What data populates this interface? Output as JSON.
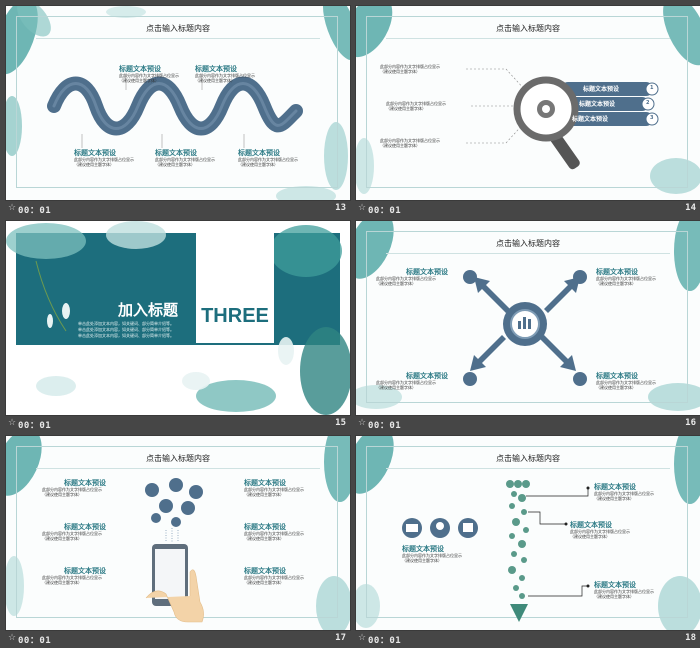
{
  "colors": {
    "teal": "#2f7c87",
    "dark_teal": "#1d6e7d",
    "steel": "#4f6f8c",
    "leaf": "#3f9e9b",
    "light_leaf": "#9fd1cf",
    "bg": "#464646"
  },
  "slides": [
    {
      "number": "13",
      "time": "00：01",
      "title": "点击输入标题内容",
      "items": [
        {
          "label": "标题文本预设",
          "body1": "此部分内容作为文字排版占位显示",
          "body2": "（建议使用主题字体）"
        },
        {
          "label": "标题文本预设",
          "body1": "此部分内容作为文字排版占位显示",
          "body2": "（建议使用主题字体）"
        },
        {
          "label": "标题文本预设",
          "body1": "此部分内容作为文字排版占位显示",
          "body2": "（建议使用主题字体）"
        },
        {
          "label": "标题文本预设",
          "body1": "此部分内容作为文字排版占位显示",
          "body2": "（建议使用主题字体）"
        },
        {
          "label": "标题文本预设",
          "body1": "此部分内容作为文字排版占位显示",
          "body2": "（建议使用主题字体）"
        }
      ]
    },
    {
      "number": "14",
      "time": "00：01",
      "title": "点击输入标题内容",
      "left_items": [
        {
          "body1": "此部分内容作为文字排版占位显示",
          "body2": "（建议使用主题字体）"
        },
        {
          "body1": "此部分内容作为文字排版占位显示",
          "body2": "（建议使用主题字体）"
        },
        {
          "body1": "此部分内容作为文字排版占位显示",
          "body2": "（建议使用主题字体）"
        }
      ],
      "tabs": [
        {
          "label": "标题文本预设",
          "num": "1"
        },
        {
          "label": "标题文本预设",
          "num": "2"
        },
        {
          "label": "标题文本预设",
          "num": "3"
        }
      ]
    },
    {
      "number": "15",
      "time": "00：01",
      "heading": "加入标题",
      "section": "THREE",
      "lines": [
        "单击此处添加文本内容，如关键词、部分简单介绍等。",
        "单击此处添加文本内容，如关键词、部分简单介绍等。",
        "单击此处添加文本内容，如关键词、部分简单介绍等。"
      ]
    },
    {
      "number": "16",
      "time": "00：01",
      "title": "点击输入标题内容",
      "items": [
        {
          "label": "标题文本预设",
          "body1": "此部分内容作为文字排版占位显示",
          "body2": "（建议使用主题字体）"
        },
        {
          "label": "标题文本预设",
          "body1": "此部分内容作为文字排版占位显示",
          "body2": "（建议使用主题字体）"
        },
        {
          "label": "标题文本预设",
          "body1": "此部分内容作为文字排版占位显示",
          "body2": "（建议使用主题字体）"
        },
        {
          "label": "标题文本预设",
          "body1": "此部分内容作为文字排版占位显示",
          "body2": "（建议使用主题字体）"
        }
      ]
    },
    {
      "number": "17",
      "time": "00：01",
      "title": "点击输入标题内容",
      "items": [
        {
          "label": "标题文本预设",
          "body1": "此部分内容作为文字排版占位显示",
          "body2": "（建议使用主题字体）"
        },
        {
          "label": "标题文本预设",
          "body1": "此部分内容作为文字排版占位显示",
          "body2": "（建议使用主题字体）"
        },
        {
          "label": "标题文本预设",
          "body1": "此部分内容作为文字排版占位显示",
          "body2": "（建议使用主题字体）"
        },
        {
          "label": "标题文本预设",
          "body1": "此部分内容作为文字排版占位显示",
          "body2": "（建议使用主题字体）"
        },
        {
          "label": "标题文本预设",
          "body1": "此部分内容作为文字排版占位显示",
          "body2": "（建议使用主题字体）"
        },
        {
          "label": "标题文本预设",
          "body1": "此部分内容作为文字排版占位显示",
          "body2": "（建议使用主题字体）"
        }
      ]
    },
    {
      "number": "18",
      "time": "00：01",
      "title": "点击输入标题内容",
      "left_item": {
        "label": "标题文本预设",
        "body1": "此部分内容作为文字排版占位显示",
        "body2": "（建议使用主题字体）"
      },
      "right_items": [
        {
          "label": "标题文本预设",
          "body1": "此部分内容作为文字排版占位显示",
          "body2": "（建议使用主题字体）"
        },
        {
          "label": "标题文本预设",
          "body1": "此部分内容作为文字排版占位显示",
          "body2": "（建议使用主题字体）"
        },
        {
          "label": "标题文本预设",
          "body1": "此部分内容作为文字排版占位显示",
          "body2": "（建议使用主题字体）"
        }
      ]
    }
  ]
}
